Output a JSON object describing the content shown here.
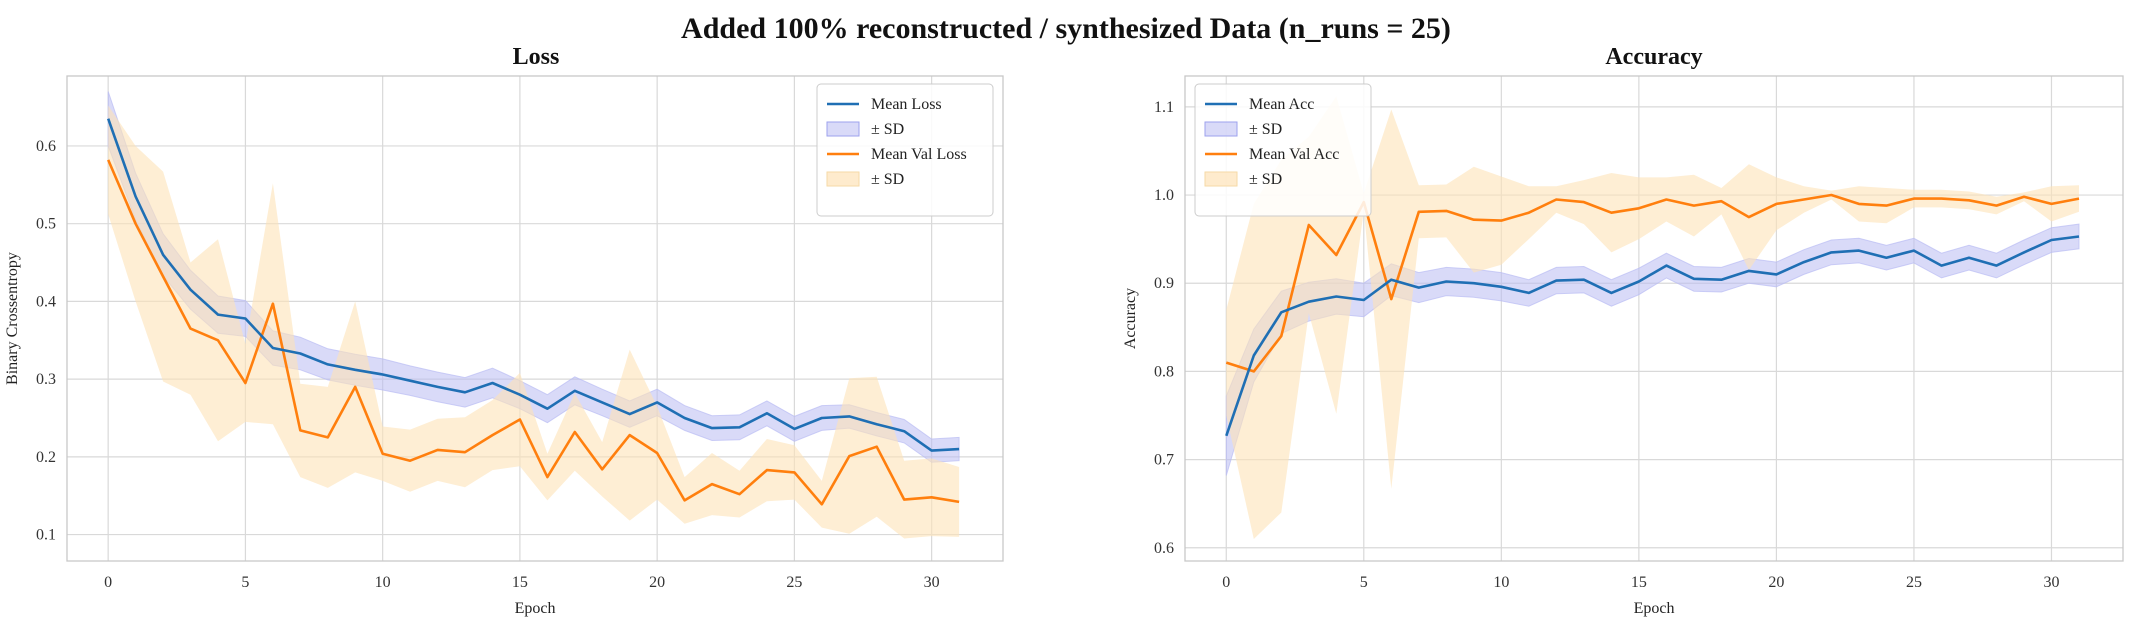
{
  "figure": {
    "suptitle": "Added 100% reconstructed / synthesized Data (n_runs = 25)"
  },
  "colors": {
    "train": "#1f6fb4",
    "train_band": "#b9bcf3",
    "val": "#ff7f0e",
    "val_band": "#fde3b8",
    "grid": "#d9d9d9",
    "frame": "#c8c8c8"
  },
  "chart_data": [
    {
      "type": "line",
      "title": "Loss",
      "xlabel": "Epoch",
      "ylabel": "Binary Crossentropy",
      "xlim": [
        -1.5,
        32.6
      ],
      "ylim": [
        0.066,
        0.69
      ],
      "xticks": [
        0,
        5,
        10,
        15,
        20,
        25,
        30
      ],
      "yticks": [
        0.1,
        0.2,
        0.3,
        0.4,
        0.5,
        0.6
      ],
      "ytick_labels": [
        "0.1",
        "0.2",
        "0.3",
        "0.4",
        "0.5",
        "0.6"
      ],
      "grid": true,
      "legend_position": "upper right",
      "legend": [
        "Mean Loss",
        "± SD",
        "Mean Val Loss",
        "± SD"
      ],
      "x": [
        0,
        1,
        2,
        3,
        4,
        5,
        6,
        7,
        8,
        9,
        10,
        11,
        12,
        13,
        14,
        15,
        16,
        17,
        18,
        19,
        20,
        21,
        22,
        23,
        24,
        25,
        26,
        27,
        28,
        29,
        30,
        31
      ],
      "series": [
        {
          "name": "Mean Loss",
          "role": "train",
          "values": [
            0.635,
            0.535,
            0.46,
            0.415,
            0.383,
            0.378,
            0.34,
            0.333,
            0.319,
            0.312,
            0.306,
            0.298,
            0.29,
            0.283,
            0.295,
            0.28,
            0.262,
            0.285,
            0.27,
            0.255,
            0.27,
            0.25,
            0.237,
            0.238,
            0.256,
            0.236,
            0.25,
            0.252,
            0.242,
            0.233,
            0.208,
            0.21
          ],
          "sd": [
            0.035,
            0.03,
            0.027,
            0.025,
            0.024,
            0.023,
            0.022,
            0.021,
            0.02,
            0.02,
            0.02,
            0.019,
            0.019,
            0.019,
            0.019,
            0.018,
            0.018,
            0.018,
            0.017,
            0.017,
            0.017,
            0.016,
            0.016,
            0.016,
            0.016,
            0.016,
            0.016,
            0.015,
            0.015,
            0.015,
            0.015,
            0.015
          ]
        },
        {
          "name": "Mean Val Loss",
          "role": "val",
          "values": [
            0.582,
            0.5,
            0.432,
            0.365,
            0.35,
            0.295,
            0.397,
            0.234,
            0.225,
            0.29,
            0.204,
            0.195,
            0.209,
            0.206,
            0.228,
            0.248,
            0.174,
            0.232,
            0.184,
            0.228,
            0.205,
            0.144,
            0.165,
            0.152,
            0.183,
            0.18,
            0.139,
            0.201,
            0.213,
            0.145,
            0.148,
            0.142
          ],
          "sd": [
            0.07,
            0.1,
            0.135,
            0.085,
            0.13,
            0.05,
            0.155,
            0.06,
            0.065,
            0.11,
            0.035,
            0.04,
            0.04,
            0.045,
            0.045,
            0.06,
            0.03,
            0.05,
            0.035,
            0.11,
            0.06,
            0.03,
            0.04,
            0.03,
            0.04,
            0.035,
            0.03,
            0.1,
            0.09,
            0.05,
            0.05,
            0.045
          ]
        }
      ]
    },
    {
      "type": "line",
      "title": "Accuracy",
      "xlabel": "Epoch",
      "ylabel": "Accuracy",
      "xlim": [
        -1.5,
        32.6
      ],
      "ylim": [
        0.585,
        1.135
      ],
      "xticks": [
        0,
        5,
        10,
        15,
        20,
        25,
        30
      ],
      "yticks": [
        0.6,
        0.7,
        0.8,
        0.9,
        1.0,
        1.1
      ],
      "ytick_labels": [
        "0.6",
        "0.7",
        "0.8",
        "0.9",
        "1.0",
        "1.1"
      ],
      "grid": true,
      "legend_position": "upper left",
      "legend": [
        "Mean Acc",
        "± SD",
        "Mean Val Acc",
        "± SD"
      ],
      "x": [
        0,
        1,
        2,
        3,
        4,
        5,
        6,
        7,
        8,
        9,
        10,
        11,
        12,
        13,
        14,
        15,
        16,
        17,
        18,
        19,
        20,
        21,
        22,
        23,
        24,
        25,
        26,
        27,
        28,
        29,
        30,
        31
      ],
      "series": [
        {
          "name": "Mean Acc",
          "role": "train",
          "values": [
            0.727,
            0.818,
            0.867,
            0.879,
            0.885,
            0.881,
            0.904,
            0.895,
            0.902,
            0.9,
            0.896,
            0.889,
            0.903,
            0.904,
            0.889,
            0.902,
            0.92,
            0.905,
            0.904,
            0.914,
            0.91,
            0.924,
            0.935,
            0.937,
            0.929,
            0.937,
            0.92,
            0.929,
            0.92,
            0.935,
            0.949,
            0.953
          ],
          "sd": [
            0.045,
            0.03,
            0.024,
            0.022,
            0.02,
            0.019,
            0.018,
            0.017,
            0.016,
            0.016,
            0.016,
            0.015,
            0.015,
            0.015,
            0.015,
            0.015,
            0.014,
            0.014,
            0.014,
            0.014,
            0.014,
            0.014,
            0.014,
            0.014,
            0.014,
            0.014,
            0.014,
            0.014,
            0.014,
            0.014,
            0.014,
            0.014
          ]
        },
        {
          "name": "Mean Val Acc",
          "role": "val",
          "values": [
            0.81,
            0.8,
            0.84,
            0.966,
            0.932,
            0.992,
            0.882,
            0.981,
            0.982,
            0.972,
            0.971,
            0.98,
            0.995,
            0.992,
            0.98,
            0.985,
            0.995,
            0.988,
            0.993,
            0.975,
            0.99,
            0.995,
            1.0,
            0.99,
            0.988,
            0.996,
            0.996,
            0.994,
            0.988,
            0.998,
            0.99,
            0.996
          ],
          "sd": [
            0.06,
            0.19,
            0.2,
            0.1,
            0.18,
            0.01,
            0.215,
            0.03,
            0.03,
            0.06,
            0.05,
            0.03,
            0.015,
            0.025,
            0.045,
            0.035,
            0.025,
            0.035,
            0.015,
            0.06,
            0.03,
            0.015,
            0.005,
            0.02,
            0.02,
            0.01,
            0.01,
            0.01,
            0.01,
            0.005,
            0.02,
            0.015
          ]
        }
      ]
    }
  ]
}
